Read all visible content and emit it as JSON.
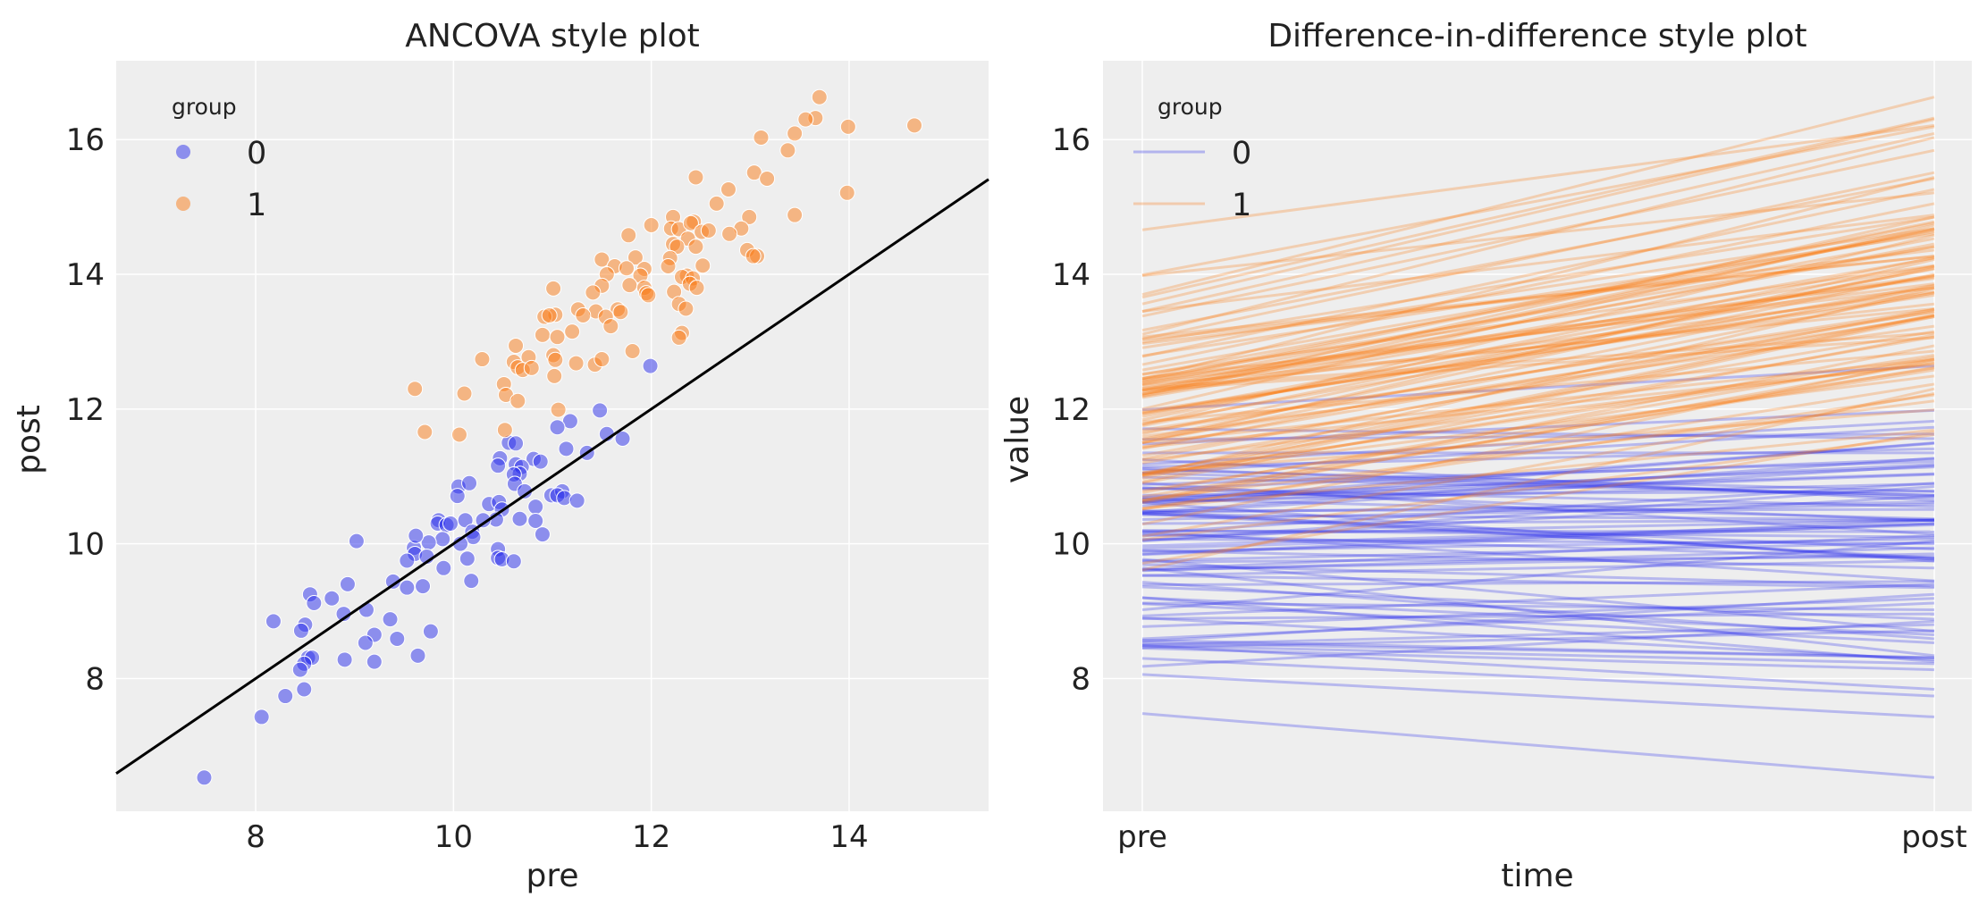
{
  "colors": {
    "group0": "#2a2eec",
    "group1": "#fa7c17",
    "background": "#eeeeee",
    "grid": "#ffffff",
    "reference_line": "#000000"
  },
  "chart_data": [
    {
      "type": "scatter",
      "title": "ANCOVA style plot",
      "xlabel": "pre",
      "ylabel": "post",
      "xlim": [
        6.59,
        15.41
      ],
      "ylim": [
        6.03,
        17.17
      ],
      "xticks": [
        8,
        10,
        12,
        14
      ],
      "yticks": [
        8,
        10,
        12,
        14,
        16
      ],
      "grid": true,
      "legend": {
        "title": "group",
        "placement": "top-left",
        "entries": [
          "0",
          "1"
        ]
      },
      "reference_line": {
        "x": [
          6.59,
          15.41
        ],
        "y": [
          6.59,
          15.41
        ]
      }
    },
    {
      "type": "line",
      "title": "Difference-in-difference style plot",
      "xlabel": "time",
      "ylabel": "value",
      "categories": [
        "pre",
        "post"
      ],
      "ylim": [
        6.03,
        17.17
      ],
      "yticks": [
        8,
        10,
        12,
        14,
        16
      ],
      "grid": true,
      "legend": {
        "title": "group",
        "placement": "top-left",
        "entries": [
          "0",
          "1"
        ]
      }
    }
  ],
  "groups": {
    "0": [
      [
        11.99,
        12.64
      ],
      [
        11.48,
        11.98
      ],
      [
        11.18,
        11.82
      ],
      [
        11.05,
        11.73
      ],
      [
        11.55,
        11.63
      ],
      [
        11.71,
        11.56
      ],
      [
        10.56,
        11.5
      ],
      [
        10.63,
        11.49
      ],
      [
        11.14,
        11.41
      ],
      [
        11.35,
        11.35
      ],
      [
        10.47,
        11.27
      ],
      [
        10.45,
        11.16
      ],
      [
        10.81,
        11.26
      ],
      [
        10.88,
        11.22
      ],
      [
        10.63,
        11.18
      ],
      [
        10.69,
        11.14
      ],
      [
        10.67,
        11.04
      ],
      [
        10.61,
        11.03
      ],
      [
        10.62,
        10.89
      ],
      [
        10.72,
        10.78
      ],
      [
        10.05,
        10.85
      ],
      [
        10.16,
        10.9
      ],
      [
        10.04,
        10.71
      ],
      [
        10.99,
        10.72
      ],
      [
        11.1,
        10.78
      ],
      [
        11.05,
        10.72
      ],
      [
        11.12,
        10.68
      ],
      [
        11.25,
        10.64
      ],
      [
        10.36,
        10.59
      ],
      [
        10.46,
        10.62
      ],
      [
        10.49,
        10.51
      ],
      [
        10.83,
        10.55
      ],
      [
        10.43,
        10.36
      ],
      [
        10.3,
        10.35
      ],
      [
        10.67,
        10.37
      ],
      [
        10.83,
        10.34
      ],
      [
        10.12,
        10.35
      ],
      [
        9.85,
        10.35
      ],
      [
        9.84,
        10.3
      ],
      [
        9.93,
        10.28
      ],
      [
        9.97,
        10.3
      ],
      [
        10.9,
        10.14
      ],
      [
        10.19,
        10.18
      ],
      [
        10.2,
        10.1
      ],
      [
        9.89,
        10.07
      ],
      [
        9.75,
        10.02
      ],
      [
        9.02,
        10.04
      ],
      [
        10.07,
        10.0
      ],
      [
        9.6,
        9.94
      ],
      [
        9.62,
        10.12
      ],
      [
        10.45,
        9.92
      ],
      [
        9.61,
        9.85
      ],
      [
        9.53,
        9.75
      ],
      [
        9.73,
        9.81
      ],
      [
        10.14,
        9.78
      ],
      [
        10.45,
        9.79
      ],
      [
        10.49,
        9.77
      ],
      [
        10.61,
        9.74
      ],
      [
        9.9,
        9.64
      ],
      [
        10.18,
        9.45
      ],
      [
        8.93,
        9.4
      ],
      [
        9.39,
        9.44
      ],
      [
        9.53,
        9.35
      ],
      [
        9.69,
        9.37
      ],
      [
        8.55,
        9.25
      ],
      [
        8.77,
        9.19
      ],
      [
        8.59,
        9.12
      ],
      [
        9.12,
        9.02
      ],
      [
        8.89,
        8.96
      ],
      [
        8.18,
        8.85
      ],
      [
        8.5,
        8.8
      ],
      [
        8.46,
        8.71
      ],
      [
        9.36,
        8.88
      ],
      [
        9.77,
        8.7
      ],
      [
        9.2,
        8.65
      ],
      [
        9.11,
        8.53
      ],
      [
        9.43,
        8.59
      ],
      [
        8.53,
        8.31
      ],
      [
        8.57,
        8.31
      ],
      [
        8.9,
        8.28
      ],
      [
        9.2,
        8.25
      ],
      [
        9.64,
        8.34
      ],
      [
        8.49,
        8.22
      ],
      [
        8.45,
        8.13
      ],
      [
        8.3,
        7.74
      ],
      [
        8.49,
        7.84
      ],
      [
        8.06,
        7.43
      ],
      [
        7.48,
        6.53
      ]
    ],
    "1": [
      [
        13.7,
        16.63
      ],
      [
        14.66,
        16.21
      ],
      [
        13.99,
        16.19
      ],
      [
        13.66,
        16.32
      ],
      [
        13.56,
        16.3
      ],
      [
        13.45,
        16.09
      ],
      [
        13.11,
        16.03
      ],
      [
        13.38,
        15.84
      ],
      [
        12.45,
        15.44
      ],
      [
        13.04,
        15.51
      ],
      [
        13.17,
        15.42
      ],
      [
        13.98,
        15.21
      ],
      [
        12.78,
        15.26
      ],
      [
        12.66,
        15.05
      ],
      [
        13.45,
        14.88
      ],
      [
        12.99,
        14.85
      ],
      [
        12.91,
        14.68
      ],
      [
        12.79,
        14.6
      ],
      [
        12.22,
        14.85
      ],
      [
        12.2,
        14.68
      ],
      [
        12.28,
        14.67
      ],
      [
        12.43,
        14.78
      ],
      [
        12.4,
        14.76
      ],
      [
        12.51,
        14.63
      ],
      [
        12.58,
        14.65
      ],
      [
        12.0,
        14.73
      ],
      [
        11.77,
        14.58
      ],
      [
        12.37,
        14.53
      ],
      [
        12.22,
        14.45
      ],
      [
        12.26,
        14.41
      ],
      [
        12.45,
        14.41
      ],
      [
        12.97,
        14.36
      ],
      [
        13.07,
        14.27
      ],
      [
        13.03,
        14.27
      ],
      [
        11.84,
        14.25
      ],
      [
        11.5,
        14.22
      ],
      [
        11.63,
        14.12
      ],
      [
        12.19,
        14.24
      ],
      [
        12.17,
        14.12
      ],
      [
        12.52,
        14.13
      ],
      [
        11.93,
        14.08
      ],
      [
        11.75,
        14.09
      ],
      [
        11.55,
        14.0
      ],
      [
        11.89,
        13.98
      ],
      [
        12.36,
        13.98
      ],
      [
        12.31,
        13.96
      ],
      [
        12.42,
        13.94
      ],
      [
        12.39,
        13.86
      ],
      [
        12.46,
        13.8
      ],
      [
        11.78,
        13.84
      ],
      [
        11.5,
        13.83
      ],
      [
        11.41,
        13.73
      ],
      [
        11.93,
        13.8
      ],
      [
        11.95,
        13.72
      ],
      [
        11.97,
        13.69
      ],
      [
        12.23,
        13.74
      ],
      [
        11.01,
        13.79
      ],
      [
        12.28,
        13.56
      ],
      [
        12.35,
        13.49
      ],
      [
        11.26,
        13.48
      ],
      [
        11.44,
        13.45
      ],
      [
        11.31,
        13.39
      ],
      [
        11.66,
        13.48
      ],
      [
        11.69,
        13.44
      ],
      [
        11.54,
        13.37
      ],
      [
        11.03,
        13.4
      ],
      [
        10.92,
        13.37
      ],
      [
        10.97,
        13.39
      ],
      [
        11.59,
        13.23
      ],
      [
        11.2,
        13.15
      ],
      [
        10.9,
        13.1
      ],
      [
        11.05,
        13.07
      ],
      [
        12.31,
        13.13
      ],
      [
        12.28,
        13.06
      ],
      [
        10.63,
        12.94
      ],
      [
        10.29,
        12.74
      ],
      [
        10.76,
        12.77
      ],
      [
        10.61,
        12.7
      ],
      [
        10.65,
        12.62
      ],
      [
        10.7,
        12.58
      ],
      [
        10.79,
        12.61
      ],
      [
        11.01,
        12.8
      ],
      [
        11.03,
        12.73
      ],
      [
        11.24,
        12.68
      ],
      [
        11.43,
        12.66
      ],
      [
        11.5,
        12.74
      ],
      [
        11.81,
        12.86
      ],
      [
        11.02,
        12.49
      ],
      [
        10.51,
        12.37
      ],
      [
        10.53,
        12.21
      ],
      [
        10.65,
        12.12
      ],
      [
        10.11,
        12.23
      ],
      [
        9.61,
        12.3
      ],
      [
        11.06,
        11.99
      ],
      [
        9.71,
        11.66
      ],
      [
        10.06,
        11.62
      ],
      [
        10.52,
        11.69
      ]
    ]
  }
}
